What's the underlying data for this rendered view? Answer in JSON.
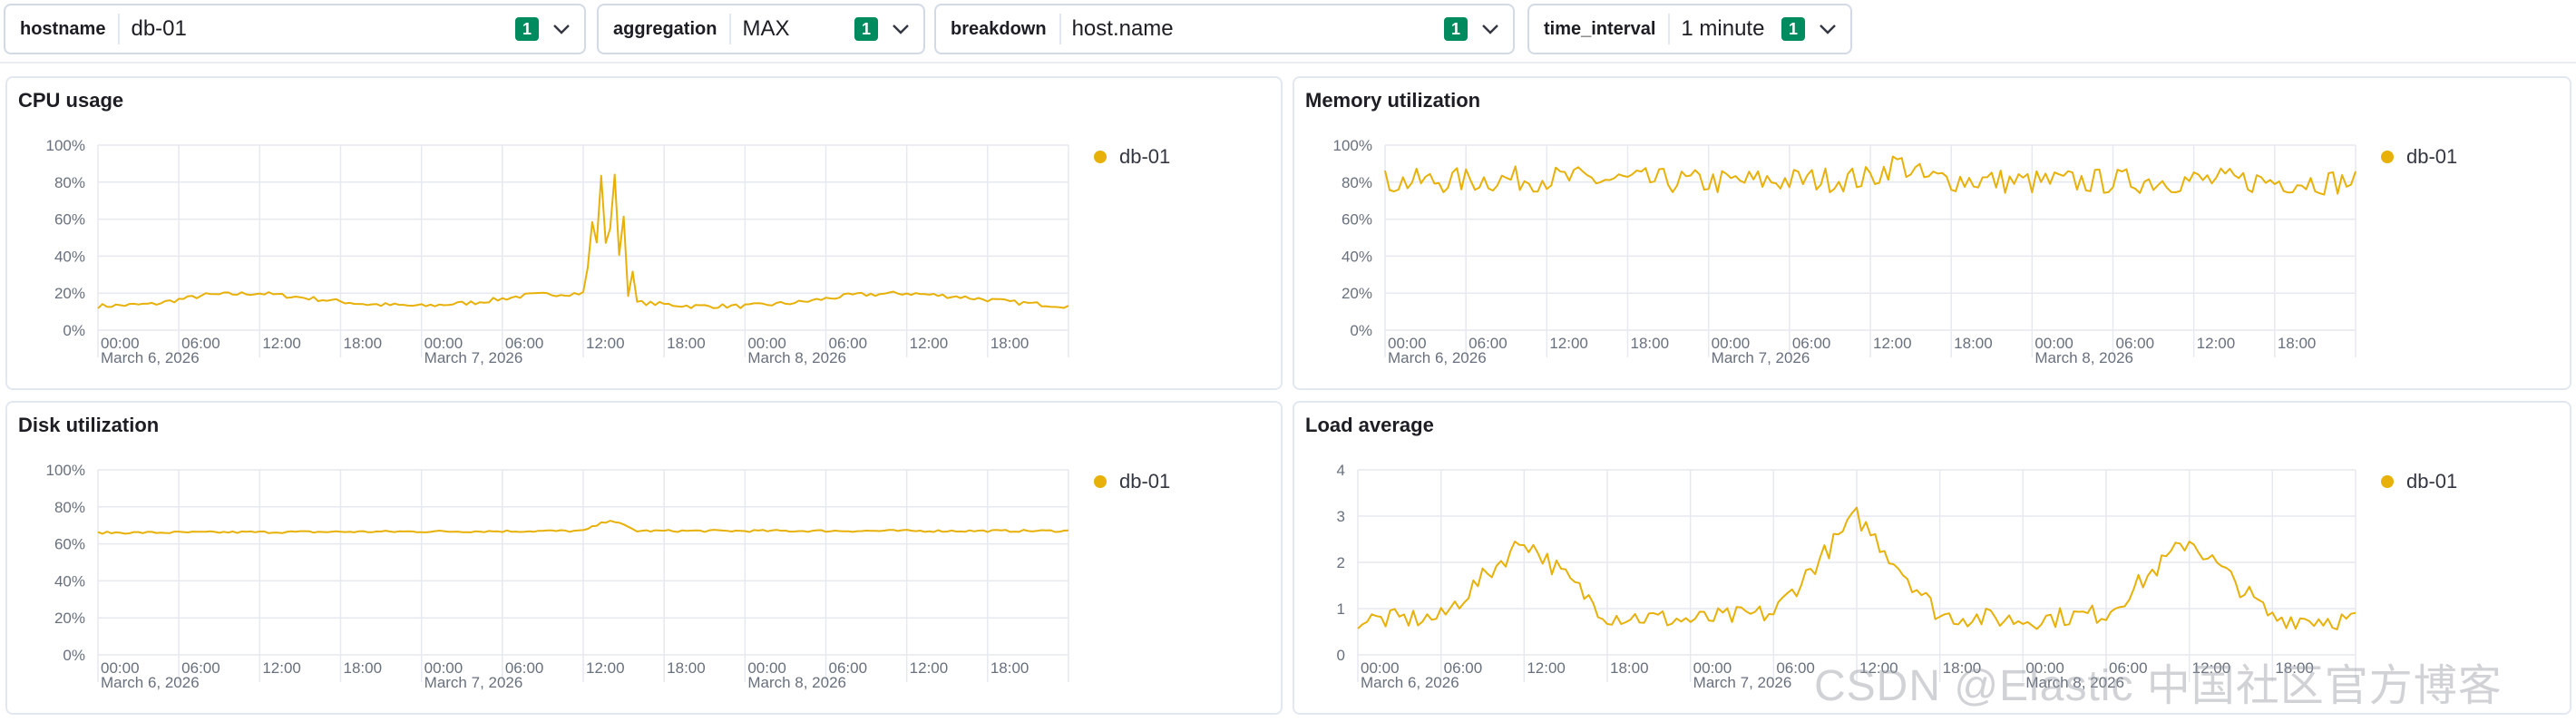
{
  "filters": [
    {
      "label": "hostname",
      "value": "db-01",
      "count": "1"
    },
    {
      "label": "aggregation",
      "value": "MAX",
      "count": "1"
    },
    {
      "label": "breakdown",
      "value": "host.name",
      "count": "1"
    },
    {
      "label": "time_interval",
      "value": "1 minute",
      "count": "1"
    }
  ],
  "colors": {
    "series": "#e7b10a",
    "badge": "#008b5e",
    "grid": "#e6e9ef",
    "axis_text": "#69707d"
  },
  "x_ticks": [
    "00:00",
    "06:00",
    "12:00",
    "18:00",
    "00:00",
    "06:00",
    "12:00",
    "18:00",
    "00:00",
    "06:00",
    "12:00",
    "18:00"
  ],
  "date_labels": [
    "March 6, 2026",
    "March 7, 2026",
    "March 8, 2026"
  ],
  "panels": [
    {
      "title": "CPU usage",
      "legend": "db-01",
      "y_ticks": [
        "100%",
        "80%",
        "60%",
        "40%",
        "20%",
        "0%"
      ]
    },
    {
      "title": "Memory utilization",
      "legend": "db-01",
      "y_ticks": [
        "100%",
        "80%",
        "60%",
        "40%",
        "20%",
        "0%"
      ]
    },
    {
      "title": "Disk utilization",
      "legend": "db-01",
      "y_ticks": [
        "100%",
        "80%",
        "60%",
        "40%",
        "20%",
        "0%"
      ]
    },
    {
      "title": "Load average",
      "legend": "db-01",
      "y_ticks": [
        "4",
        "3",
        "2",
        "1",
        "0"
      ]
    }
  ],
  "chart_data": [
    {
      "type": "line",
      "title": "CPU usage",
      "ylim": [
        0,
        100
      ],
      "x_range": [
        "2026-03-06T00:00",
        "2026-03-09T00:00"
      ],
      "series": [
        {
          "name": "db-01",
          "x": [
            "2026-03-06T00:00",
            "2026-03-06T04:00",
            "2026-03-06T08:00",
            "2026-03-06T12:00",
            "2026-03-06T16:00",
            "2026-03-06T20:00",
            "2026-03-07T00:00",
            "2026-03-07T04:00",
            "2026-03-07T08:00",
            "2026-03-07T12:00",
            "2026-03-07T13:00",
            "2026-03-07T15:00",
            "2026-03-07T16:00",
            "2026-03-07T20:00",
            "2026-03-08T00:00",
            "2026-03-08T04:00",
            "2026-03-08T08:00",
            "2026-03-08T12:00",
            "2026-03-08T16:00",
            "2026-03-08T20:00",
            "2026-03-09T00:00"
          ],
          "y": [
            13,
            14,
            19,
            20,
            17,
            14,
            13,
            15,
            19,
            20,
            62,
            62,
            15,
            13,
            13,
            15,
            19,
            20,
            18,
            15,
            13
          ]
        }
      ]
    },
    {
      "type": "line",
      "title": "Memory utilization",
      "ylim": [
        0,
        100
      ],
      "x_range": [
        "2026-03-06T00:00",
        "2026-03-09T00:00"
      ],
      "series": [
        {
          "name": "db-01",
          "x": [
            "2026-03-06T00:00",
            "2026-03-06T12:00",
            "2026-03-07T00:00",
            "2026-03-07T12:00",
            "2026-03-07T14:00",
            "2026-03-07T16:00",
            "2026-03-08T00:00",
            "2026-03-08T12:00",
            "2026-03-09T00:00"
          ],
          "y": [
            80,
            82,
            80,
            82,
            91,
            82,
            80,
            81,
            80
          ]
        }
      ]
    },
    {
      "type": "line",
      "title": "Disk utilization",
      "ylim": [
        0,
        100
      ],
      "x_range": [
        "2026-03-06T00:00",
        "2026-03-09T00:00"
      ],
      "series": [
        {
          "name": "db-01",
          "x": [
            "2026-03-06T00:00",
            "2026-03-07T12:00",
            "2026-03-07T14:00",
            "2026-03-07T16:00",
            "2026-03-08T00:00",
            "2026-03-09T00:00"
          ],
          "y": [
            66,
            67,
            73,
            67,
            67,
            67
          ]
        }
      ]
    },
    {
      "type": "line",
      "title": "Load average",
      "ylim": [
        0,
        4
      ],
      "x_range": [
        "2026-03-06T00:00",
        "2026-03-09T00:00"
      ],
      "series": [
        {
          "name": "db-01",
          "x": [
            "2026-03-06T00:00",
            "2026-03-06T06:00",
            "2026-03-06T12:00",
            "2026-03-06T18:00",
            "2026-03-07T00:00",
            "2026-03-07T06:00",
            "2026-03-07T12:00",
            "2026-03-07T18:00",
            "2026-03-08T00:00",
            "2026-03-08T06:00",
            "2026-03-08T12:00",
            "2026-03-08T18:00",
            "2026-03-09T00:00"
          ],
          "y": [
            0.75,
            0.8,
            2.5,
            0.85,
            0.75,
            0.9,
            3.0,
            0.85,
            0.75,
            0.9,
            2.5,
            0.8,
            0.75
          ]
        }
      ]
    }
  ],
  "watermark": "CSDN @Elastic 中国社区官方博客"
}
